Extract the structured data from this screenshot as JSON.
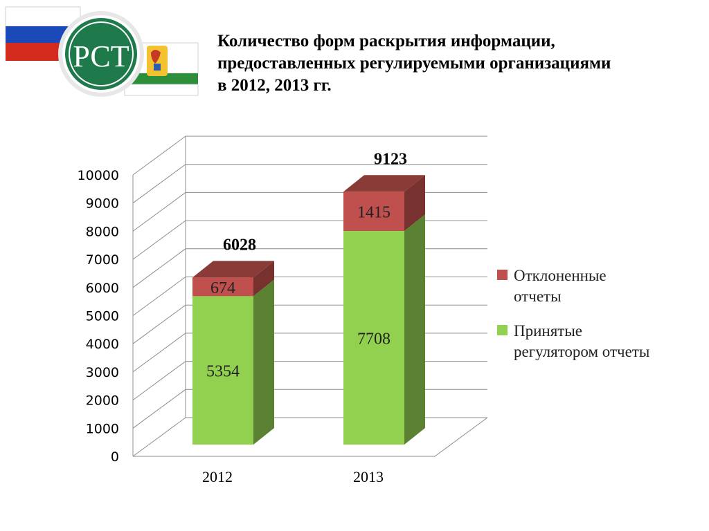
{
  "logo": {
    "text": "РСТ"
  },
  "title_lines": [
    "Количество форм раскрытия информации,",
    "предоставленных регулируемыми организациями",
    "в 2012, 2013 гг."
  ],
  "colors": {
    "accepted": "#92d050",
    "rejected": "#c0504d",
    "flag_white": "#ffffff",
    "flag_blue": "#1c49b9",
    "flag_red": "#d52b1e",
    "emblem_green": "#1e7a4b",
    "kirov_green": "#2d8f3c"
  },
  "chart_data": {
    "type": "bar",
    "stacked": true,
    "categories": [
      "2012",
      "2013"
    ],
    "series": [
      {
        "name": "Принятые регулятором отчеты",
        "values": [
          5354,
          7708
        ]
      },
      {
        "name": "Отклоненные отчеты",
        "values": [
          674,
          1415
        ]
      }
    ],
    "totals": [
      "6028",
      "9123"
    ],
    "ylim": [
      0,
      10000
    ],
    "yticks": [
      "0",
      "1000",
      "2000",
      "3000",
      "4000",
      "5000",
      "6000",
      "7000",
      "8000",
      "9000",
      "10000"
    ],
    "grid": true,
    "legend_position": "right"
  },
  "legend": [
    {
      "lines": [
        "Отклоненные",
        "отчеты"
      ],
      "color": "#c0504d"
    },
    {
      "lines": [
        "Принятые",
        "регулятором отчеты"
      ],
      "color": "#92d050"
    }
  ]
}
